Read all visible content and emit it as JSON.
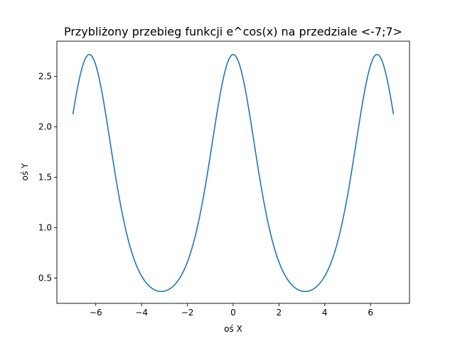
{
  "chart_data": {
    "type": "line",
    "title": "Przybliżony przebieg funkcji e^cos(x) na przedziale <-7;7>",
    "xlabel": "oś X",
    "ylabel": "oś Y",
    "xlim": [
      -7.7,
      7.7
    ],
    "ylim": [
      0.25,
      2.85
    ],
    "xticks": [
      -6,
      -4,
      -2,
      0,
      2,
      4,
      6
    ],
    "xtick_labels": [
      "−6",
      "−4",
      "−2",
      "0",
      "2",
      "4",
      "6"
    ],
    "yticks": [
      0.5,
      1.0,
      1.5,
      2.0,
      2.5
    ],
    "ytick_labels": [
      "0.5",
      "1.0",
      "1.5",
      "2.0",
      "2.5"
    ],
    "grid": false,
    "line_color": "#1f77b4",
    "series": [
      {
        "x": [
          -7.0,
          -6.5,
          -6.283,
          -6.0,
          -5.5,
          -5.0,
          -4.5,
          -4.0,
          -3.5,
          -3.142,
          -3.0,
          -2.5,
          -2.0,
          -1.5,
          -1.0,
          -0.5,
          0.0,
          0.5,
          1.0,
          1.5,
          2.0,
          2.5,
          3.0,
          3.142,
          3.5,
          4.0,
          4.5,
          5.0,
          5.5,
          6.0,
          6.283,
          6.5,
          7.0
        ],
        "y": [
          2.13,
          2.65,
          2.72,
          2.61,
          2.03,
          1.33,
          0.81,
          0.52,
          0.39,
          0.37,
          0.37,
          0.45,
          0.66,
          1.07,
          1.72,
          2.41,
          2.72,
          2.41,
          1.72,
          1.07,
          0.66,
          0.45,
          0.37,
          0.37,
          0.39,
          0.52,
          0.81,
          1.33,
          2.03,
          2.61,
          2.72,
          2.65,
          2.13
        ]
      }
    ]
  }
}
